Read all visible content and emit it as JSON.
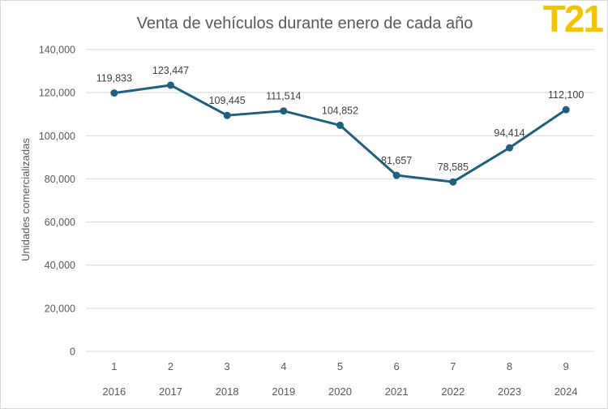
{
  "logo": {
    "text": "T21",
    "color": "#f5c400"
  },
  "chart_data": {
    "type": "line",
    "title": "Venta de vehículos durante enero de cada año",
    "xlabel": "",
    "ylabel": "Unidades comercializadas",
    "categories": [
      "1",
      "2",
      "3",
      "4",
      "5",
      "6",
      "7",
      "8",
      "9"
    ],
    "secondary_categories": [
      "2016",
      "2017",
      "2018",
      "2019",
      "2020",
      "2021",
      "2022",
      "2023",
      "2024"
    ],
    "series": [
      {
        "values": [
          119833,
          123447,
          109445,
          111514,
          104852,
          81657,
          78585,
          94414,
          112100
        ],
        "color": "#1f5f7f"
      }
    ],
    "data_labels": [
      "119,833",
      "123,447",
      "109,445",
      "111,514",
      "104,852",
      "81,657",
      "78,585",
      "94,414",
      "112,100"
    ],
    "ylim": [
      0,
      140000
    ],
    "yticks": [
      "0",
      "20,000",
      "40,000",
      "60,000",
      "80,000",
      "100,000",
      "120,000",
      "140,000"
    ],
    "grid": true,
    "legend": "none",
    "colors": {
      "line": "#1f5f7f",
      "grid": "#d9d9d9",
      "text": "#595959"
    }
  }
}
